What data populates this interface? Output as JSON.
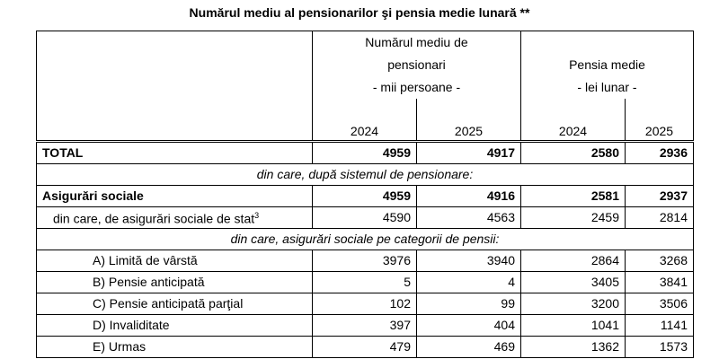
{
  "title": "Numărul mediu al pensionarilor şi pensia medie lunară **",
  "header": {
    "groups": [
      {
        "label": "Numărul mediu de pensionari",
        "unit": "- mii persoane -"
      },
      {
        "label": "Pensia medie",
        "unit": "- lei lunar -"
      }
    ],
    "years": [
      "2024",
      "2025",
      "2024",
      "2025"
    ]
  },
  "table": {
    "rows": [
      {
        "label": "TOTAL",
        "values": [
          4959,
          4917,
          2580,
          2936
        ]
      },
      {
        "heading": "din care, după sistemul de pensionare:"
      },
      {
        "label": "Asigurări sociale",
        "values": [
          4959,
          4916,
          2581,
          2937
        ]
      },
      {
        "label": "din care, de asigurări sociale de stat",
        "note": "3",
        "values": [
          4590,
          4563,
          2459,
          2814
        ]
      },
      {
        "heading": "din care, asigurări sociale pe categorii de pensii:"
      },
      {
        "label": "A) Limită de vârstă",
        "values": [
          3976,
          3940,
          2864,
          3268
        ]
      },
      {
        "label": "B) Pensie anticipată",
        "values": [
          5,
          4,
          3405,
          3841
        ]
      },
      {
        "label": "C) Pensie anticipată parţial",
        "values": [
          102,
          99,
          3200,
          3506
        ]
      },
      {
        "label": "D) Invaliditate",
        "values": [
          397,
          404,
          1041,
          1141
        ]
      },
      {
        "label": "E) Urmas",
        "values": [
          479,
          469,
          1362,
          1573
        ]
      }
    ]
  }
}
